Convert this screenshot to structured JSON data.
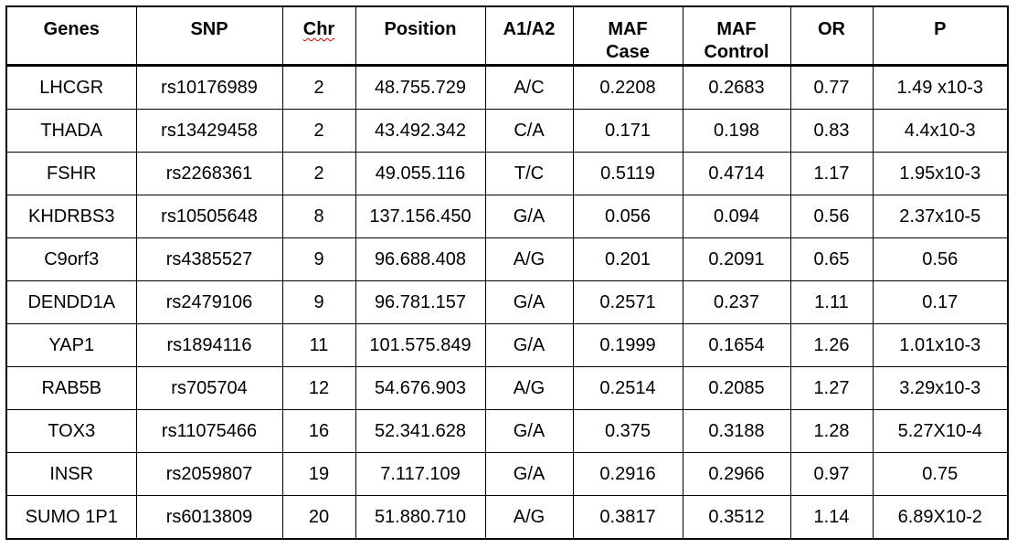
{
  "table": {
    "headers": [
      "Genes",
      "SNP",
      "Chr",
      "Position",
      "A1/A2",
      "MAF\nCase",
      "MAF\nControl",
      "OR",
      "P"
    ],
    "rows": [
      [
        "LHCGR",
        "rs10176989",
        "2",
        "48.755.729",
        "A/C",
        "0.2208",
        "0.2683",
        "0.77",
        "1.49 x10-3"
      ],
      [
        "THADA",
        "rs13429458",
        "2",
        "43.492.342",
        "C/A",
        "0.171",
        "0.198",
        "0.83",
        "4.4x10-3"
      ],
      [
        "FSHR",
        "rs2268361",
        "2",
        "49.055.116",
        "T/C",
        "0.5119",
        "0.4714",
        "1.17",
        "1.95x10-3"
      ],
      [
        "KHDRBS3",
        "rs10505648",
        "8",
        "137.156.450",
        "G/A",
        "0.056",
        "0.094",
        "0.56",
        "2.37x10-5"
      ],
      [
        "C9orf3",
        "rs4385527",
        "9",
        "96.688.408",
        "A/G",
        "0.201",
        "0.2091",
        "0.65",
        "0.56"
      ],
      [
        "DENDD1A",
        "rs2479106",
        "9",
        "96.781.157",
        "G/A",
        "0.2571",
        "0.237",
        "1.11",
        "0.17"
      ],
      [
        "YAP1",
        "rs1894116",
        "11",
        "101.575.849",
        "G/A",
        "0.1999",
        "0.1654",
        "1.26",
        "1.01x10-3"
      ],
      [
        "RAB5B",
        "rs705704",
        "12",
        "54.676.903",
        "A/G",
        "0.2514",
        "0.2085",
        "1.27",
        "3.29x10-3"
      ],
      [
        "TOX3",
        "rs11075466",
        "16",
        "52.341.628",
        "G/A",
        "0.375",
        "0.3188",
        "1.28",
        "5.27X10-4"
      ],
      [
        "INSR",
        "rs2059807",
        "19",
        "7.117.109",
        "G/A",
        "0.2916",
        "0.2966",
        "0.97",
        "0.75"
      ],
      [
        "SUMO 1P1",
        "rs6013809",
        "20",
        "51.880.710",
        "A/G",
        "0.3817",
        "0.3512",
        "1.14",
        "6.89X10-2"
      ]
    ]
  }
}
